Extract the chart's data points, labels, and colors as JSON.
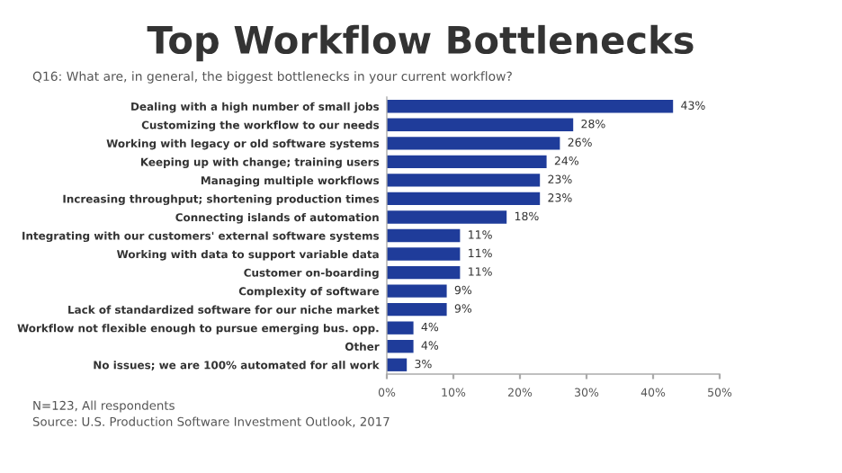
{
  "chart_data": {
    "type": "bar",
    "orientation": "horizontal",
    "title": "Top Workflow Bottlenecks",
    "subtitle": "Q16: What are, in general, the biggest bottlenecks in your current workflow?",
    "categories": [
      "Dealing with a high number of small jobs",
      "Customizing the workflow to our needs",
      "Working with legacy or old software systems",
      "Keeping up with change; training users",
      "Managing multiple workflows",
      "Increasing throughput; shortening production times",
      "Connecting islands of automation",
      "Integrating with our customers' external software systems",
      "Working with data to support variable data",
      "Customer on-boarding",
      "Complexity of software",
      "Lack of standardized software for our niche market",
      "Workflow not flexible enough to pursue emerging bus. opp.",
      "Other",
      "No issues; we are 100% automated for all work"
    ],
    "values": [
      43,
      28,
      26,
      24,
      23,
      23,
      18,
      11,
      11,
      11,
      9,
      9,
      4,
      4,
      3
    ],
    "value_labels": [
      "43%",
      "28%",
      "26%",
      "24%",
      "23%",
      "23%",
      "18%",
      "11%",
      "11%",
      "11%",
      "9%",
      "9%",
      "4%",
      "4%",
      "3%"
    ],
    "color": "#1f3c9a",
    "xlim": [
      0,
      50
    ],
    "xticks": [
      {
        "value": 0,
        "label": "0%"
      },
      {
        "value": 10,
        "label": "10%"
      },
      {
        "value": 20,
        "label": "20%"
      },
      {
        "value": 30,
        "label": "30%"
      },
      {
        "value": 40,
        "label": "40%"
      },
      {
        "value": 50,
        "label": "50%"
      }
    ],
    "grid": false,
    "annotations": [
      "N=123, All respondents",
      "Source: U.S. Production Software Investment Outlook, 2017"
    ]
  }
}
